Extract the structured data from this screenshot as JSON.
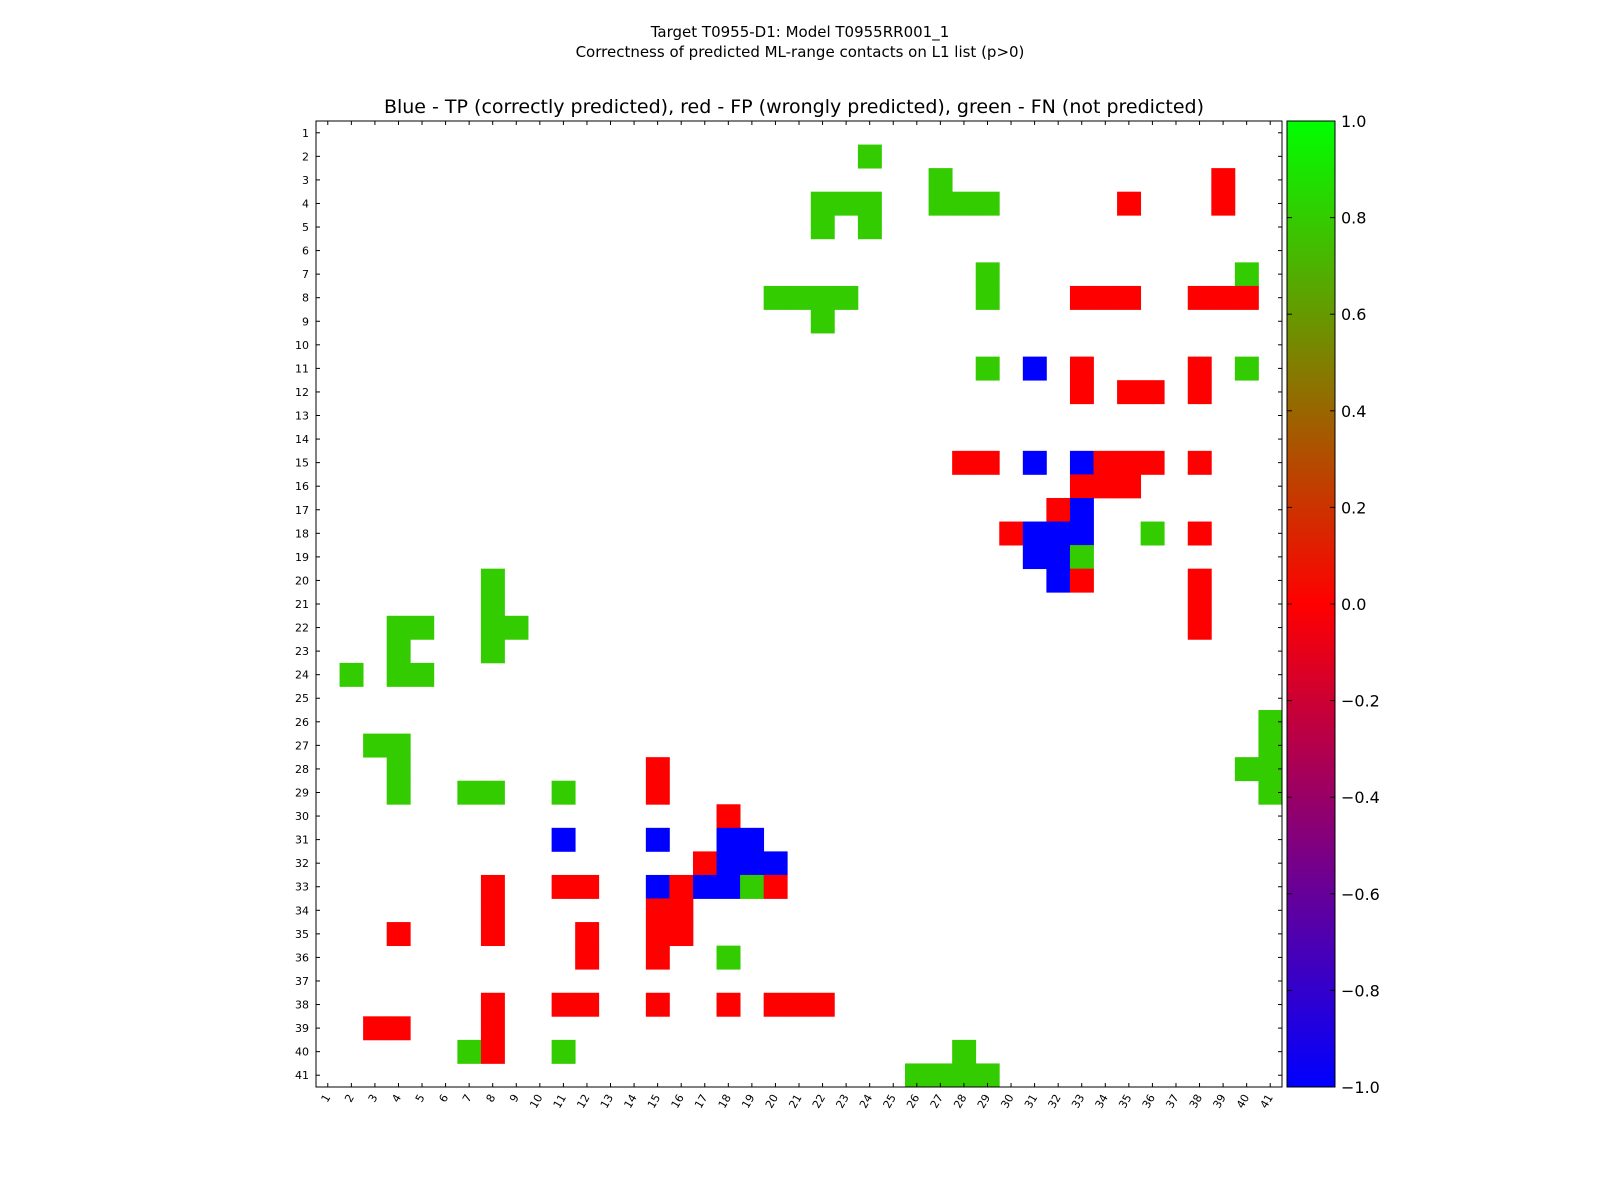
{
  "chart_data": {
    "type": "heatmap",
    "suptitle_lines": [
      "Target T0955-D1: Model T0955RR001_1",
      "Correctness of predicted ML-range contacts on L1 list (p>0)"
    ],
    "title": "Blue - TP (correctly predicted), red - FP (wrongly predicted), green - FN (not predicted)",
    "xlabel": "",
    "ylabel": "",
    "n": 41,
    "x_ticks": [
      "1",
      "2",
      "3",
      "4",
      "5",
      "6",
      "7",
      "8",
      "9",
      "10",
      "11",
      "12",
      "13",
      "14",
      "15",
      "16",
      "17",
      "18",
      "19",
      "20",
      "21",
      "22",
      "23",
      "24",
      "25",
      "26",
      "27",
      "28",
      "29",
      "30",
      "31",
      "32",
      "33",
      "34",
      "35",
      "36",
      "37",
      "38",
      "39",
      "40",
      "41"
    ],
    "y_ticks": [
      "1",
      "2",
      "3",
      "4",
      "5",
      "6",
      "7",
      "8",
      "9",
      "10",
      "11",
      "12",
      "13",
      "14",
      "15",
      "16",
      "17",
      "18",
      "19",
      "20",
      "21",
      "22",
      "23",
      "24",
      "25",
      "26",
      "27",
      "28",
      "29",
      "30",
      "31",
      "32",
      "33",
      "34",
      "35",
      "36",
      "37",
      "38",
      "39",
      "40",
      "41"
    ],
    "colorbar": {
      "range": [
        -1.0,
        1.0
      ],
      "ticks": [
        "1.0",
        "0.8",
        "0.6",
        "0.4",
        "0.2",
        "0.0",
        "−0.2",
        "−0.4",
        "−0.6",
        "−0.8",
        "−1.0"
      ],
      "tick_values": [
        1.0,
        0.8,
        0.6,
        0.4,
        0.2,
        0.0,
        -0.2,
        -0.4,
        -0.6,
        -0.8,
        -1.0
      ],
      "stops": [
        "#0000ff",
        "#ff0000",
        "#00ff00"
      ]
    },
    "legend": [
      {
        "label": "TP",
        "value": -1,
        "color": "#0000ff"
      },
      {
        "label": "FP",
        "value": 0,
        "color": "#ff0000"
      },
      {
        "label": "FN",
        "value": 1,
        "color": "#33cc00"
      }
    ],
    "cells": [
      {
        "row": 2,
        "col": 24,
        "value": 1
      },
      {
        "row": 3,
        "col": 27,
        "value": 1
      },
      {
        "row": 3,
        "col": 39,
        "value": 0
      },
      {
        "row": 4,
        "col": 22,
        "value": 1
      },
      {
        "row": 4,
        "col": 23,
        "value": 1
      },
      {
        "row": 4,
        "col": 24,
        "value": 1
      },
      {
        "row": 4,
        "col": 27,
        "value": 1
      },
      {
        "row": 4,
        "col": 28,
        "value": 1
      },
      {
        "row": 4,
        "col": 29,
        "value": 1
      },
      {
        "row": 4,
        "col": 35,
        "value": 0
      },
      {
        "row": 4,
        "col": 39,
        "value": 0
      },
      {
        "row": 5,
        "col": 22,
        "value": 1
      },
      {
        "row": 5,
        "col": 24,
        "value": 1
      },
      {
        "row": 7,
        "col": 29,
        "value": 1
      },
      {
        "row": 7,
        "col": 40,
        "value": 1
      },
      {
        "row": 8,
        "col": 20,
        "value": 1
      },
      {
        "row": 8,
        "col": 21,
        "value": 1
      },
      {
        "row": 8,
        "col": 22,
        "value": 1
      },
      {
        "row": 8,
        "col": 23,
        "value": 1
      },
      {
        "row": 8,
        "col": 29,
        "value": 1
      },
      {
        "row": 8,
        "col": 33,
        "value": 0
      },
      {
        "row": 8,
        "col": 34,
        "value": 0
      },
      {
        "row": 8,
        "col": 35,
        "value": 0
      },
      {
        "row": 8,
        "col": 38,
        "value": 0
      },
      {
        "row": 8,
        "col": 39,
        "value": 0
      },
      {
        "row": 8,
        "col": 40,
        "value": 0
      },
      {
        "row": 9,
        "col": 22,
        "value": 1
      },
      {
        "row": 11,
        "col": 29,
        "value": 1
      },
      {
        "row": 11,
        "col": 31,
        "value": -1
      },
      {
        "row": 11,
        "col": 33,
        "value": 0
      },
      {
        "row": 11,
        "col": 38,
        "value": 0
      },
      {
        "row": 11,
        "col": 40,
        "value": 1
      },
      {
        "row": 12,
        "col": 33,
        "value": 0
      },
      {
        "row": 12,
        "col": 35,
        "value": 0
      },
      {
        "row": 12,
        "col": 36,
        "value": 0
      },
      {
        "row": 12,
        "col": 38,
        "value": 0
      },
      {
        "row": 15,
        "col": 28,
        "value": 0
      },
      {
        "row": 15,
        "col": 29,
        "value": 0
      },
      {
        "row": 15,
        "col": 31,
        "value": -1
      },
      {
        "row": 15,
        "col": 33,
        "value": -1
      },
      {
        "row": 15,
        "col": 34,
        "value": 0
      },
      {
        "row": 15,
        "col": 35,
        "value": 0
      },
      {
        "row": 15,
        "col": 36,
        "value": 0
      },
      {
        "row": 15,
        "col": 38,
        "value": 0
      },
      {
        "row": 16,
        "col": 33,
        "value": 0
      },
      {
        "row": 16,
        "col": 34,
        "value": 0
      },
      {
        "row": 16,
        "col": 35,
        "value": 0
      },
      {
        "row": 17,
        "col": 32,
        "value": 0
      },
      {
        "row": 17,
        "col": 33,
        "value": -1
      },
      {
        "row": 18,
        "col": 30,
        "value": 0
      },
      {
        "row": 18,
        "col": 31,
        "value": -1
      },
      {
        "row": 18,
        "col": 32,
        "value": -1
      },
      {
        "row": 18,
        "col": 33,
        "value": -1
      },
      {
        "row": 18,
        "col": 36,
        "value": 1
      },
      {
        "row": 18,
        "col": 38,
        "value": 0
      },
      {
        "row": 19,
        "col": 31,
        "value": -1
      },
      {
        "row": 19,
        "col": 32,
        "value": -1
      },
      {
        "row": 19,
        "col": 33,
        "value": 1
      },
      {
        "row": 20,
        "col": 8,
        "value": 1
      },
      {
        "row": 20,
        "col": 32,
        "value": -1
      },
      {
        "row": 20,
        "col": 33,
        "value": 0
      },
      {
        "row": 20,
        "col": 38,
        "value": 0
      },
      {
        "row": 21,
        "col": 8,
        "value": 1
      },
      {
        "row": 21,
        "col": 38,
        "value": 0
      },
      {
        "row": 22,
        "col": 4,
        "value": 1
      },
      {
        "row": 22,
        "col": 5,
        "value": 1
      },
      {
        "row": 22,
        "col": 8,
        "value": 1
      },
      {
        "row": 22,
        "col": 9,
        "value": 1
      },
      {
        "row": 22,
        "col": 38,
        "value": 0
      },
      {
        "row": 23,
        "col": 4,
        "value": 1
      },
      {
        "row": 23,
        "col": 8,
        "value": 1
      },
      {
        "row": 24,
        "col": 2,
        "value": 1
      },
      {
        "row": 24,
        "col": 4,
        "value": 1
      },
      {
        "row": 24,
        "col": 5,
        "value": 1
      },
      {
        "row": 26,
        "col": 41,
        "value": 1
      },
      {
        "row": 27,
        "col": 3,
        "value": 1
      },
      {
        "row": 27,
        "col": 4,
        "value": 1
      },
      {
        "row": 27,
        "col": 41,
        "value": 1
      },
      {
        "row": 28,
        "col": 4,
        "value": 1
      },
      {
        "row": 28,
        "col": 15,
        "value": 0
      },
      {
        "row": 28,
        "col": 40,
        "value": 1
      },
      {
        "row": 28,
        "col": 41,
        "value": 1
      },
      {
        "row": 29,
        "col": 4,
        "value": 1
      },
      {
        "row": 29,
        "col": 7,
        "value": 1
      },
      {
        "row": 29,
        "col": 8,
        "value": 1
      },
      {
        "row": 29,
        "col": 11,
        "value": 1
      },
      {
        "row": 29,
        "col": 15,
        "value": 0
      },
      {
        "row": 29,
        "col": 41,
        "value": 1
      },
      {
        "row": 30,
        "col": 18,
        "value": 0
      },
      {
        "row": 31,
        "col": 11,
        "value": -1
      },
      {
        "row": 31,
        "col": 15,
        "value": -1
      },
      {
        "row": 31,
        "col": 18,
        "value": -1
      },
      {
        "row": 31,
        "col": 19,
        "value": -1
      },
      {
        "row": 32,
        "col": 17,
        "value": 0
      },
      {
        "row": 32,
        "col": 18,
        "value": -1
      },
      {
        "row": 32,
        "col": 19,
        "value": -1
      },
      {
        "row": 32,
        "col": 20,
        "value": -1
      },
      {
        "row": 33,
        "col": 8,
        "value": 0
      },
      {
        "row": 33,
        "col": 11,
        "value": 0
      },
      {
        "row": 33,
        "col": 12,
        "value": 0
      },
      {
        "row": 33,
        "col": 15,
        "value": -1
      },
      {
        "row": 33,
        "col": 16,
        "value": 0
      },
      {
        "row": 33,
        "col": 17,
        "value": -1
      },
      {
        "row": 33,
        "col": 18,
        "value": -1
      },
      {
        "row": 33,
        "col": 19,
        "value": 1
      },
      {
        "row": 33,
        "col": 20,
        "value": 0
      },
      {
        "row": 34,
        "col": 8,
        "value": 0
      },
      {
        "row": 34,
        "col": 15,
        "value": 0
      },
      {
        "row": 34,
        "col": 16,
        "value": 0
      },
      {
        "row": 35,
        "col": 4,
        "value": 0
      },
      {
        "row": 35,
        "col": 8,
        "value": 0
      },
      {
        "row": 35,
        "col": 12,
        "value": 0
      },
      {
        "row": 35,
        "col": 15,
        "value": 0
      },
      {
        "row": 35,
        "col": 16,
        "value": 0
      },
      {
        "row": 36,
        "col": 12,
        "value": 0
      },
      {
        "row": 36,
        "col": 15,
        "value": 0
      },
      {
        "row": 36,
        "col": 18,
        "value": 1
      },
      {
        "row": 38,
        "col": 8,
        "value": 0
      },
      {
        "row": 38,
        "col": 11,
        "value": 0
      },
      {
        "row": 38,
        "col": 12,
        "value": 0
      },
      {
        "row": 38,
        "col": 15,
        "value": 0
      },
      {
        "row": 38,
        "col": 18,
        "value": 0
      },
      {
        "row": 38,
        "col": 20,
        "value": 0
      },
      {
        "row": 38,
        "col": 21,
        "value": 0
      },
      {
        "row": 38,
        "col": 22,
        "value": 0
      },
      {
        "row": 39,
        "col": 3,
        "value": 0
      },
      {
        "row": 39,
        "col": 4,
        "value": 0
      },
      {
        "row": 39,
        "col": 8,
        "value": 0
      },
      {
        "row": 40,
        "col": 7,
        "value": 1
      },
      {
        "row": 40,
        "col": 8,
        "value": 0
      },
      {
        "row": 40,
        "col": 11,
        "value": 1
      },
      {
        "row": 40,
        "col": 28,
        "value": 1
      },
      {
        "row": 41,
        "col": 26,
        "value": 1
      },
      {
        "row": 41,
        "col": 27,
        "value": 1
      },
      {
        "row": 41,
        "col": 28,
        "value": 1
      },
      {
        "row": 41,
        "col": 29,
        "value": 1
      }
    ]
  }
}
